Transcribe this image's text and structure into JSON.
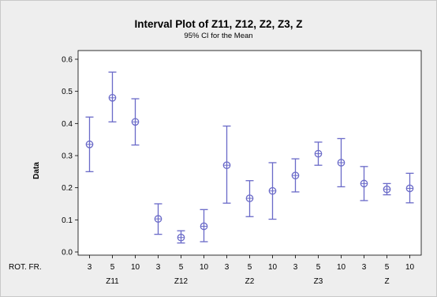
{
  "chart_data": {
    "type": "interval",
    "title": "Interval Plot of Z11, Z12, Z2, Z3, Z",
    "subtitle": "95% CI for the Mean",
    "ylabel": "Data",
    "xlabel_row_label": "ROT. FR.",
    "ylim": [
      0.0,
      0.6
    ],
    "yticks": [
      "0.0",
      "0.1",
      "0.2",
      "0.3",
      "0.4",
      "0.5",
      "0.6"
    ],
    "grid": false,
    "colors": {
      "interval": "#6a6ac8",
      "plot_background": "#ffffff",
      "frame_background": "#eeeeee"
    },
    "groups": [
      {
        "name": "Z11",
        "points": [
          {
            "x": "3",
            "mean": 0.335,
            "lower": 0.25,
            "upper": 0.42
          },
          {
            "x": "5",
            "mean": 0.48,
            "lower": 0.405,
            "upper": 0.56
          },
          {
            "x": "10",
            "mean": 0.405,
            "lower": 0.333,
            "upper": 0.477
          }
        ]
      },
      {
        "name": "Z12",
        "points": [
          {
            "x": "3",
            "mean": 0.103,
            "lower": 0.055,
            "upper": 0.15
          },
          {
            "x": "5",
            "mean": 0.045,
            "lower": 0.028,
            "upper": 0.066
          },
          {
            "x": "10",
            "mean": 0.08,
            "lower": 0.032,
            "upper": 0.132
          }
        ]
      },
      {
        "name": "Z2",
        "points": [
          {
            "x": "3",
            "mean": 0.27,
            "lower": 0.152,
            "upper": 0.392
          },
          {
            "x": "5",
            "mean": 0.167,
            "lower": 0.11,
            "upper": 0.222
          },
          {
            "x": "10",
            "mean": 0.19,
            "lower": 0.102,
            "upper": 0.278
          }
        ]
      },
      {
        "name": "Z3",
        "points": [
          {
            "x": "3",
            "mean": 0.238,
            "lower": 0.187,
            "upper": 0.29
          },
          {
            "x": "5",
            "mean": 0.306,
            "lower": 0.27,
            "upper": 0.342
          },
          {
            "x": "10",
            "mean": 0.278,
            "lower": 0.203,
            "upper": 0.353
          }
        ]
      },
      {
        "name": "Z",
        "points": [
          {
            "x": "3",
            "mean": 0.213,
            "lower": 0.16,
            "upper": 0.266
          },
          {
            "x": "5",
            "mean": 0.195,
            "lower": 0.178,
            "upper": 0.213
          },
          {
            "x": "10",
            "mean": 0.198,
            "lower": 0.153,
            "upper": 0.245
          }
        ]
      }
    ]
  }
}
